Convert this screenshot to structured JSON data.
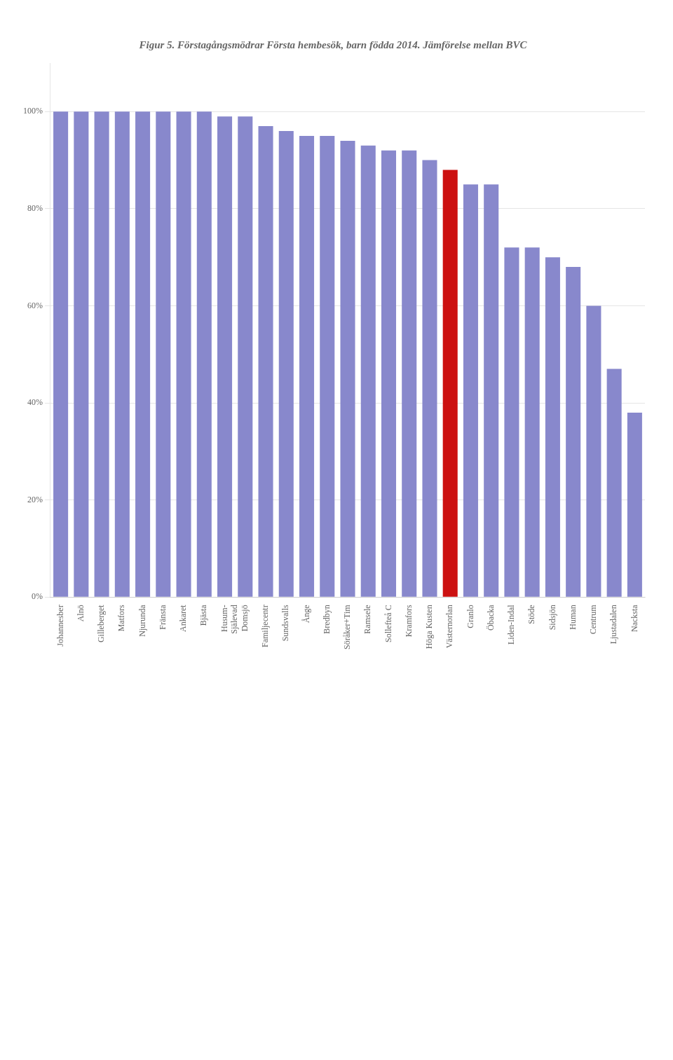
{
  "chart_data": {
    "type": "bar",
    "title": "Figur 5. Förstagångsmödrar Första hembesök, barn födda 2014. Jämförelse mellan BVC",
    "categories": [
      "Johannesber",
      "Alnö",
      "Gilleberget",
      "Matfors",
      "Njurunda",
      "Fränsta",
      "Ankaret",
      "Bjästa",
      "Husum-\nSjälevad",
      "Domsjö",
      "Familjecentr",
      "Sundsvalls",
      "Ånge",
      "Bredbyn",
      "Söråker+Tim",
      "Ramsele",
      "Sollefteå C",
      "Kramfors",
      "Höga Kusten",
      "Västernorlan",
      "Granlo",
      "Öbacka",
      "Liden-Indal",
      "Stöde",
      "Sidsjön",
      "Human",
      "Centrum",
      "Ljustadalen",
      "Nacksta"
    ],
    "values": [
      100,
      100,
      100,
      100,
      100,
      100,
      100,
      100,
      99,
      99,
      97,
      96,
      95,
      95,
      94,
      93,
      92,
      92,
      90,
      88,
      85,
      85,
      72,
      72,
      70,
      68,
      60,
      47,
      38
    ],
    "colors": [
      "#8888cc",
      "#8888cc",
      "#8888cc",
      "#8888cc",
      "#8888cc",
      "#8888cc",
      "#8888cc",
      "#8888cc",
      "#8888cc",
      "#8888cc",
      "#8888cc",
      "#8888cc",
      "#8888cc",
      "#8888cc",
      "#8888cc",
      "#8888cc",
      "#8888cc",
      "#8888cc",
      "#8888cc",
      "#cc1111",
      "#8888cc",
      "#8888cc",
      "#8888cc",
      "#8888cc",
      "#8888cc",
      "#8888cc",
      "#8888cc",
      "#8888cc",
      "#8888cc"
    ],
    "ylim": [
      0,
      110
    ],
    "yticks": [
      {
        "value": 0,
        "label": "0%"
      },
      {
        "value": 20,
        "label": "20%"
      },
      {
        "value": 40,
        "label": "40%"
      },
      {
        "value": 60,
        "label": "60%"
      },
      {
        "value": 80,
        "label": "80%"
      },
      {
        "value": 100,
        "label": "100%"
      }
    ],
    "grid": true
  }
}
